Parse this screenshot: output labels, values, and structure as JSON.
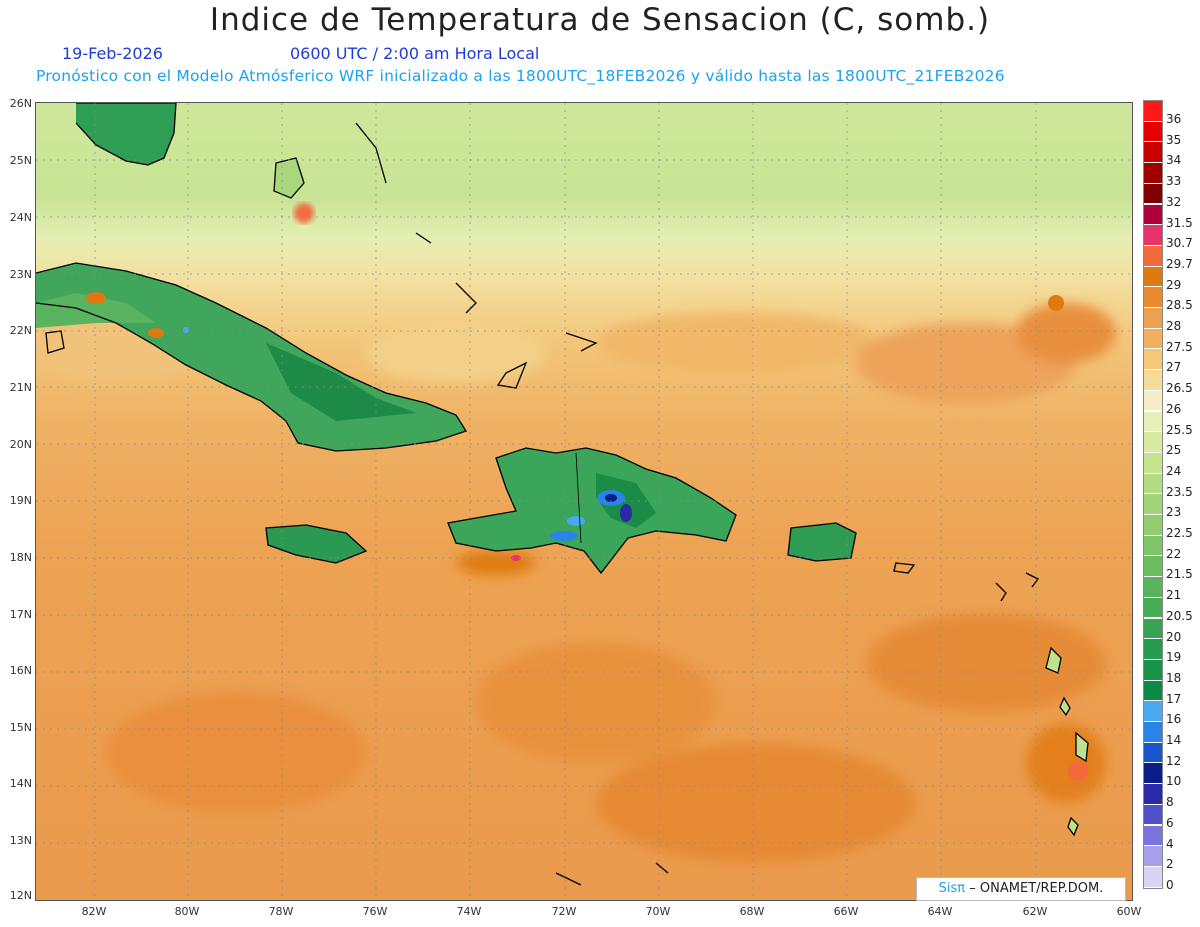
{
  "title": "Indice de Temperatura de Sensacion (C, somb.)",
  "date": "19-Feb-2026",
  "time": "0600 UTC / 2:00 am Hora Local",
  "model_info": "Pronóstico con el Modelo Atmósferico WRF inicializado a las 1800UTC_18FEB2026 y válido hasta las  1800UTC_21FEB2026",
  "lat_labels": [
    "26N",
    "25N",
    "24N",
    "23N",
    "22N",
    "21N",
    "20N",
    "19N",
    "18N",
    "17N",
    "16N",
    "15N",
    "14N",
    "13N",
    "12N"
  ],
  "lon_labels": [
    "82W",
    "80W",
    "78W",
    "76W",
    "74W",
    "72W",
    "70W",
    "68W",
    "66W",
    "64W",
    "62W",
    "60W"
  ],
  "legend": [
    {
      "label": "36",
      "color": "#ff1a1a"
    },
    {
      "label": "35",
      "color": "#e60000"
    },
    {
      "label": "34",
      "color": "#c80000"
    },
    {
      "label": "33",
      "color": "#a00000"
    },
    {
      "label": "32",
      "color": "#800000"
    },
    {
      "label": "31.5",
      "color": "#b0003c"
    },
    {
      "label": "30.7",
      "color": "#e8336a"
    },
    {
      "label": "29.7",
      "color": "#f26a3c"
    },
    {
      "label": "29",
      "color": "#e07a10"
    },
    {
      "label": "28.5",
      "color": "#ea8a30"
    },
    {
      "label": "28",
      "color": "#eda04e"
    },
    {
      "label": "27.5",
      "color": "#f0b060"
    },
    {
      "label": "27",
      "color": "#f4c878"
    },
    {
      "label": "26.5",
      "color": "#f5dc98"
    },
    {
      "label": "26",
      "color": "#f3ecc4"
    },
    {
      "label": "25.5",
      "color": "#e8f0b8"
    },
    {
      "label": "25",
      "color": "#d8eaa0"
    },
    {
      "label": "24",
      "color": "#c6e490"
    },
    {
      "label": "23.5",
      "color": "#b4dc84"
    },
    {
      "label": "23",
      "color": "#a2d47a"
    },
    {
      "label": "22.5",
      "color": "#90cc70"
    },
    {
      "label": "22",
      "color": "#7ec468"
    },
    {
      "label": "21.5",
      "color": "#6cbc62"
    },
    {
      "label": "21",
      "color": "#5ab45c"
    },
    {
      "label": "20.5",
      "color": "#48ac56"
    },
    {
      "label": "20",
      "color": "#38a452"
    },
    {
      "label": "19",
      "color": "#289c4e"
    },
    {
      "label": "18",
      "color": "#18944a"
    },
    {
      "label": "17",
      "color": "#0a8a44"
    },
    {
      "label": "16",
      "color": "#4aa8f0"
    },
    {
      "label": "14",
      "color": "#2a84e6"
    },
    {
      "label": "12",
      "color": "#1858cc"
    },
    {
      "label": "10",
      "color": "#0a1e8a"
    },
    {
      "label": "8",
      "color": "#2a2aa8"
    },
    {
      "label": "6",
      "color": "#5050c8"
    },
    {
      "label": "4",
      "color": "#7a74dc"
    },
    {
      "label": "2",
      "color": "#a8a0ec"
    },
    {
      "label": "0",
      "color": "#d8d4f6"
    }
  ],
  "credit_brand": "Sisπ",
  "credit_text": "– ONAMET/REP.DOM."
}
